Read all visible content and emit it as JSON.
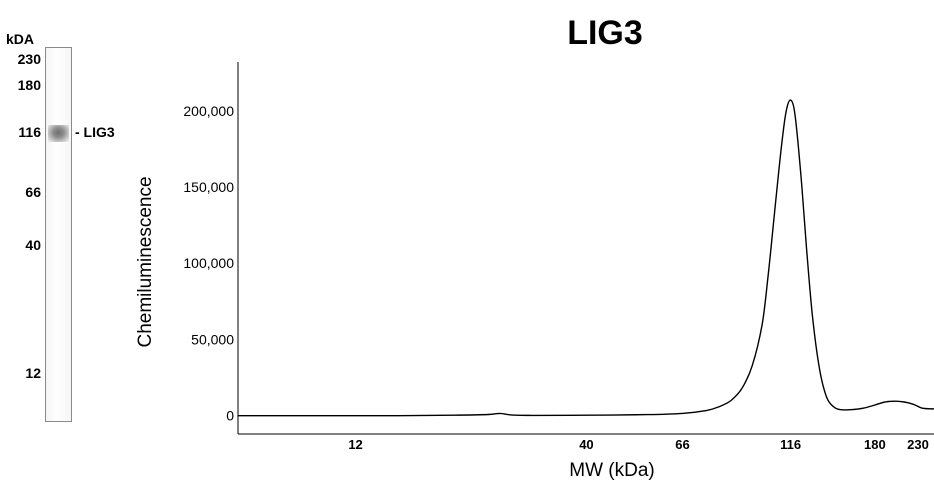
{
  "lane": {
    "unit_label": "kDA",
    "markers": [
      {
        "label": "230",
        "kda": 230
      },
      {
        "label": "180",
        "kda": 180
      },
      {
        "label": "116",
        "kda": 116
      },
      {
        "label": "66",
        "kda": 66
      },
      {
        "label": "40",
        "kda": 40
      },
      {
        "label": "12",
        "kda": 12
      }
    ],
    "band_label": "- LIG3",
    "band_kda": 116
  },
  "chart_data": {
    "type": "line",
    "title": "LIG3",
    "xlabel": "MW (kDa)",
    "ylabel": "Chemiluminescence",
    "x_scale": "log",
    "xlim": [
      6.5,
      245
    ],
    "ylim": [
      -12000,
      232000
    ],
    "x_ticks": [
      {
        "label": "12",
        "value": 12
      },
      {
        "label": "40",
        "value": 40
      },
      {
        "label": "66",
        "value": 66
      },
      {
        "label": "116",
        "value": 116
      },
      {
        "label": "180",
        "value": 180
      },
      {
        "label": "230",
        "value": 230
      }
    ],
    "y_ticks": [
      {
        "label": "0",
        "value": 0
      },
      {
        "label": "50,000",
        "value": 50000
      },
      {
        "label": "100,000",
        "value": 100000
      },
      {
        "label": "150,000",
        "value": 150000
      },
      {
        "label": "200,000",
        "value": 200000
      }
    ],
    "grid": false,
    "series": [
      {
        "color": "#000000",
        "x": [
          6.5,
          10,
          15,
          20,
          24,
          25.5,
          27,
          30,
          40,
          55,
          66,
          75,
          80,
          85,
          90,
          95,
          100,
          103,
          106,
          109,
          112,
          114,
          116,
          118,
          120,
          123,
          126,
          130,
          135,
          140,
          145,
          150,
          160,
          170,
          180,
          190,
          200,
          210,
          220,
          230,
          240,
          245
        ],
        "y": [
          0,
          0,
          0,
          300,
          800,
          1500,
          500,
          200,
          300,
          700,
          1500,
          3500,
          6000,
          10000,
          18000,
          33000,
          60000,
          90000,
          125000,
          160000,
          190000,
          203000,
          207000,
          202000,
          185000,
          150000,
          110000,
          65000,
          30000,
          12000,
          6000,
          4000,
          4000,
          5000,
          7000,
          9000,
          9500,
          9000,
          7500,
          5000,
          4500,
          4500
        ]
      }
    ]
  }
}
